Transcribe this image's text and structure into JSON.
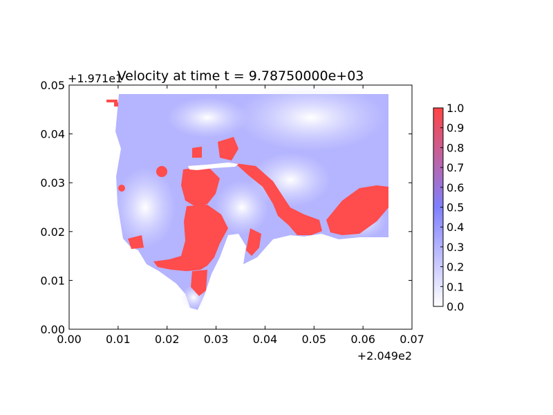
{
  "chart_data": {
    "type": "heatmap",
    "title": "Velocity at time t = 9.78750000e+03",
    "xlabel": "",
    "ylabel": "",
    "x_offset_label": "+2.049e2",
    "y_offset_label": "+1.971e1",
    "xlim": [
      0.0,
      0.07
    ],
    "ylim": [
      0.0,
      0.05
    ],
    "x_ticks": [
      "0.00",
      "0.01",
      "0.02",
      "0.03",
      "0.04",
      "0.05",
      "0.06",
      "0.07"
    ],
    "y_ticks": [
      "0.00",
      "0.01",
      "0.02",
      "0.03",
      "0.04",
      "0.05"
    ],
    "colorbar": {
      "ticks": [
        "0.0",
        "0.1",
        "0.2",
        "0.3",
        "0.4",
        "0.5",
        "0.6",
        "0.7",
        "0.8",
        "0.9",
        "1.0"
      ],
      "range": [
        0.0,
        1.0
      ],
      "colors": {
        "low": "#ffffff",
        "mid": "#8080ff",
        "high": "#ff4444"
      }
    },
    "grid": false
  }
}
